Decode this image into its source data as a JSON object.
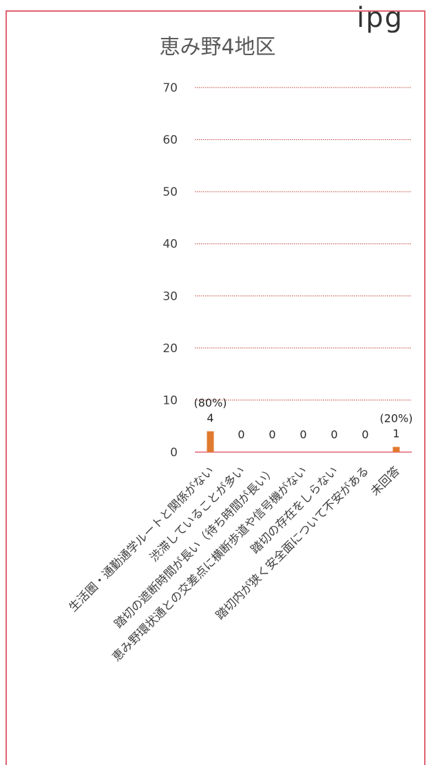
{
  "chart_data": {
    "type": "bar",
    "title": "恵み野4地区",
    "categories": [
      "生活圏・通勤通学ルートと関係がない",
      "渋滞していることが多い",
      "踏切の遮断時間が長い（待ち時間が長い）",
      "恵み野環状通との交差点に横断歩道や信号機がない",
      "踏切の存在をしらない",
      "踏切内が狭く安全面について不安がある",
      "未回答"
    ],
    "values": [
      4,
      0,
      0,
      0,
      0,
      0,
      1
    ],
    "percent_labels": [
      "(80%)",
      "",
      "",
      "",
      "",
      "",
      "(20%)"
    ],
    "ylim": [
      0,
      70
    ],
    "yticks": [
      "0",
      "10",
      "20",
      "30",
      "40",
      "50",
      "60",
      "70"
    ],
    "grid": true,
    "bar_color": "#e07a2e",
    "grid_color": "#c0392b",
    "axis_color": "#e06070"
  },
  "page": {
    "cut_text": "ipg"
  }
}
